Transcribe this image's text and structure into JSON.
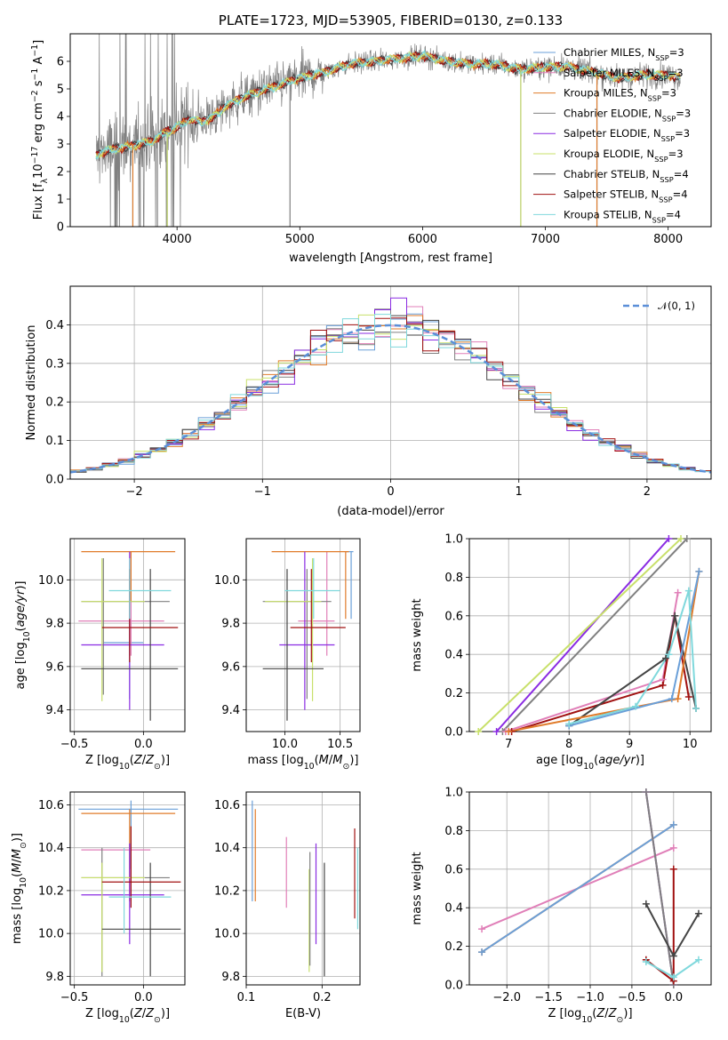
{
  "colors": {
    "chabrier_miles": "#6a9fd8",
    "salpeter_miles": "#e07fb8",
    "kroupa_miles": "#e07b2a",
    "chabrier_elodie": "#808080",
    "salpeter_elodie": "#8a2be2",
    "kroupa_elodie": "#c8e06a",
    "chabrier_stelib": "#444444",
    "salpeter_stelib": "#a01010",
    "kroupa_stelib": "#7fd8dc"
  },
  "chart_data": [
    {
      "type": "line",
      "id": "spectrum",
      "title": "PLATE=1723, MJD=53905, FIBERID=0130, z=0.133",
      "xlabel": "wavelength [Angstrom, rest frame]",
      "ylabel_parts": {
        "a": "Flux [f",
        "b": "λ",
        "c": "10",
        "d": "−17",
        "e": " erg cm",
        "f": "−2",
        "g": " s",
        "h": "−1",
        "i": " A",
        "j": "−1",
        "k": "]"
      },
      "xlim": [
        3130,
        8350
      ],
      "ylim": [
        0,
        7
      ],
      "xticks": [
        4000,
        5000,
        6000,
        7000,
        8000
      ],
      "yticks": [
        0,
        1,
        2,
        3,
        4,
        5,
        6
      ],
      "legend": [
        {
          "base": "Chabrier MILES, N",
          "sub": "SSP",
          "tail": "=3",
          "color_key": "chabrier_miles"
        },
        {
          "base": "Salpeter MILES, N",
          "sub": "SSP",
          "tail": "=3",
          "color_key": "salpeter_miles"
        },
        {
          "base": "Kroupa MILES, N",
          "sub": "SSP",
          "tail": "=3",
          "color_key": "kroupa_miles"
        },
        {
          "base": "Chabrier ELODIE, N",
          "sub": "SSP",
          "tail": "=3",
          "color_key": "chabrier_elodie"
        },
        {
          "base": "Salpeter ELODIE, N",
          "sub": "SSP",
          "tail": "=3",
          "color_key": "salpeter_elodie"
        },
        {
          "base": "Kroupa ELODIE, N",
          "sub": "SSP",
          "tail": "=3",
          "color_key": "kroupa_elodie"
        },
        {
          "base": "Chabrier STELIB, N",
          "sub": "SSP",
          "tail": "=4",
          "color_key": "chabrier_stelib"
        },
        {
          "base": "Salpeter STELIB, N",
          "sub": "SSP",
          "tail": "=4",
          "color_key": "salpeter_stelib"
        },
        {
          "base": "Kroupa STELIB, N",
          "sub": "SSP",
          "tail": "=4",
          "color_key": "kroupa_stelib"
        }
      ],
      "continuum": [
        [
          3340,
          2.6
        ],
        [
          3450,
          2.8
        ],
        [
          3600,
          2.9
        ],
        [
          3700,
          3.0
        ],
        [
          3800,
          3.1
        ],
        [
          3900,
          3.4
        ],
        [
          4000,
          3.6
        ],
        [
          4100,
          3.9
        ],
        [
          4200,
          3.8
        ],
        [
          4300,
          4.0
        ],
        [
          4400,
          4.4
        ],
        [
          4600,
          4.8
        ],
        [
          4800,
          5.1
        ],
        [
          5000,
          5.4
        ],
        [
          5200,
          5.6
        ],
        [
          5400,
          5.9
        ],
        [
          5600,
          6.0
        ],
        [
          5800,
          6.1
        ],
        [
          6000,
          6.2
        ],
        [
          6200,
          6.0
        ],
        [
          6400,
          5.9
        ],
        [
          6600,
          5.9
        ],
        [
          6800,
          5.7
        ],
        [
          7000,
          5.8
        ],
        [
          7200,
          5.8
        ],
        [
          7400,
          5.6
        ],
        [
          7600,
          5.4
        ],
        [
          7800,
          5.5
        ],
        [
          8000,
          5.5
        ],
        [
          8100,
          5.4
        ]
      ],
      "dips": [
        [
          3500,
          0
        ],
        [
          3640,
          0
        ],
        [
          3700,
          0
        ],
        [
          3840,
          0
        ],
        [
          3920,
          0
        ],
        [
          4920,
          0
        ],
        [
          6800,
          0
        ],
        [
          7420,
          0
        ]
      ]
    },
    {
      "type": "line",
      "id": "residual_histogram",
      "xlabel": "(data-model)/error",
      "ylabel": "Normed distribution",
      "xlim": [
        -2.5,
        2.5
      ],
      "ylim": [
        0,
        0.5
      ],
      "xticks": [
        -2,
        -1,
        0,
        1,
        2
      ],
      "yticks": [
        0.0,
        0.1,
        0.2,
        0.3,
        0.4
      ],
      "legend": [
        {
          "label": "𝒩(0, 1)",
          "style": "dashed",
          "color": "#5b8fd8"
        }
      ]
    },
    {
      "type": "scatter",
      "id": "age_vs_Z",
      "xlabel": "Z [log10(Z/Z⊙)]",
      "ylabel": "age  [log10(age/yr)]",
      "xlim": [
        -0.53,
        0.3
      ],
      "ylim": [
        9.3,
        10.19
      ],
      "xticks": [
        -0.5,
        0.0
      ],
      "yticks": [
        9.4,
        9.6,
        9.8,
        10.0
      ],
      "points": [
        {
          "c": "chabrier_miles",
          "x": -0.1,
          "y": 9.71,
          "xe": [
            -0.29,
            0.0
          ],
          "ye": [
            9.45,
            10.02
          ]
        },
        {
          "c": "salpeter_miles",
          "x": -0.09,
          "y": 9.81,
          "xe": [
            -0.47,
            0.15
          ],
          "ye": [
            9.65,
            10.13
          ]
        },
        {
          "c": "kroupa_miles",
          "x": -0.09,
          "y": 10.13,
          "xe": [
            -0.45,
            0.23
          ],
          "ye": [
            9.9,
            10.13
          ]
        },
        {
          "c": "chabrier_elodie",
          "x": -0.29,
          "y": 9.9,
          "xe": [
            -0.45,
            0.19
          ],
          "ye": [
            9.47,
            10.1
          ]
        },
        {
          "c": "salpeter_elodie",
          "x": -0.1,
          "y": 9.7,
          "xe": [
            -0.45,
            0.15
          ],
          "ye": [
            9.4,
            10.13
          ]
        },
        {
          "c": "kroupa_elodie",
          "x": -0.3,
          "y": 9.9,
          "xe": [
            -0.45,
            0.01
          ],
          "ye": [
            9.44,
            10.1
          ]
        },
        {
          "c": "chabrier_stelib",
          "x": 0.05,
          "y": 9.59,
          "xe": [
            -0.45,
            0.25
          ],
          "ye": [
            9.35,
            10.05
          ]
        },
        {
          "c": "salpeter_stelib",
          "x": -0.1,
          "y": 9.78,
          "xe": [
            -0.3,
            0.25
          ],
          "ye": [
            9.62,
            10.05
          ]
        },
        {
          "c": "kroupa_stelib",
          "x": -0.1,
          "y": 9.95,
          "xe": [
            -0.25,
            0.2
          ],
          "ye": [
            9.82,
            10.1
          ]
        }
      ]
    },
    {
      "type": "scatter",
      "id": "age_vs_mass",
      "xlabel": "mass [log10(M/M⊙)]",
      "ylabel": "",
      "xlim": [
        9.65,
        10.68
      ],
      "ylim": [
        9.3,
        10.19
      ],
      "xticks": [
        10.0,
        10.5
      ],
      "yticks": [
        9.4,
        9.6,
        9.8,
        10.0
      ],
      "points": [
        {
          "c": "chabrier_miles",
          "x": 10.6,
          "y": 10.13,
          "xe": [
            10.55,
            10.62
          ],
          "ye": [
            9.82,
            10.13
          ]
        },
        {
          "c": "salpeter_miles",
          "x": 10.38,
          "y": 9.81,
          "xe": [
            10.12,
            10.45
          ],
          "ye": [
            9.65,
            10.13
          ]
        },
        {
          "c": "kroupa_miles",
          "x": 10.55,
          "y": 10.13,
          "xe": [
            9.88,
            10.58
          ],
          "ye": [
            9.82,
            10.13
          ]
        },
        {
          "c": "chabrier_elodie",
          "x": 10.2,
          "y": 9.9,
          "xe": [
            9.8,
            10.42
          ],
          "ye": [
            9.45,
            10.05
          ]
        },
        {
          "c": "salpeter_elodie",
          "x": 10.18,
          "y": 9.7,
          "xe": [
            9.95,
            10.45
          ],
          "ye": [
            9.4,
            10.13
          ]
        },
        {
          "c": "kroupa_elodie",
          "x": 10.25,
          "y": 9.9,
          "xe": [
            9.82,
            10.33
          ],
          "ye": [
            9.44,
            10.1
          ]
        },
        {
          "c": "chabrier_stelib",
          "x": 10.02,
          "y": 9.59,
          "xe": [
            9.8,
            10.35
          ],
          "ye": [
            9.35,
            10.05
          ]
        },
        {
          "c": "salpeter_stelib",
          "x": 10.24,
          "y": 9.78,
          "xe": [
            10.05,
            10.55
          ],
          "ye": [
            9.62,
            10.05
          ]
        },
        {
          "c": "kroupa_stelib",
          "x": 10.26,
          "y": 9.95,
          "xe": [
            10.0,
            10.5
          ],
          "ye": [
            9.82,
            10.1
          ]
        }
      ]
    },
    {
      "type": "line",
      "id": "mass_weight_vs_age",
      "xlabel": "age  [log10(age/yr)]",
      "ylabel": "mass weight",
      "xlim": [
        6.35,
        10.35
      ],
      "ylim": [
        0,
        1.0
      ],
      "xticks": [
        7,
        8,
        9,
        10
      ],
      "yticks": [
        0.0,
        0.2,
        0.4,
        0.6,
        0.8,
        1.0
      ],
      "series": [
        {
          "c": "salpeter_elodie",
          "x": [
            6.8,
            9.65
          ],
          "y": [
            0.0,
            1.0
          ]
        },
        {
          "c": "kroupa_elodie",
          "x": [
            6.5,
            9.85
          ],
          "y": [
            0.0,
            1.0
          ]
        },
        {
          "c": "chabrier_elodie",
          "x": [
            6.9,
            9.95
          ],
          "y": [
            0.0,
            1.0
          ]
        },
        {
          "c": "salpeter_miles",
          "x": [
            6.95,
            9.55,
            9.8
          ],
          "y": [
            0.0,
            0.27,
            0.72
          ]
        },
        {
          "c": "salpeter_stelib",
          "x": [
            7.05,
            9.55,
            9.75,
            9.98
          ],
          "y": [
            0.0,
            0.24,
            0.6,
            0.18
          ]
        },
        {
          "c": "chabrier_stelib",
          "x": [
            8.0,
            9.6,
            9.75,
            10.1
          ],
          "y": [
            0.03,
            0.38,
            0.6,
            0.12
          ]
        },
        {
          "c": "kroupa_miles",
          "x": [
            7.0,
            9.8,
            10.15
          ],
          "y": [
            0.0,
            0.17,
            0.83
          ]
        },
        {
          "c": "chabrier_miles",
          "x": [
            8.0,
            9.7,
            10.15
          ],
          "y": [
            0.03,
            0.17,
            0.83
          ]
        },
        {
          "c": "kroupa_stelib",
          "x": [
            8.0,
            9.1,
            9.65,
            9.98,
            10.1
          ],
          "y": [
            0.04,
            0.13,
            0.4,
            0.73,
            0.12
          ]
        }
      ]
    },
    {
      "type": "scatter",
      "id": "mass_vs_Z",
      "xlabel": "Z [log10(Z/Z⊙)]",
      "ylabel": "mass [log10(M/M⊙)]",
      "xlim": [
        -0.53,
        0.3
      ],
      "ylim": [
        9.76,
        10.66
      ],
      "xticks": [
        -0.5,
        0.0
      ],
      "yticks": [
        9.8,
        10.0,
        10.2,
        10.4,
        10.6
      ],
      "points": [
        {
          "c": "chabrier_miles",
          "x": -0.09,
          "y": 10.58,
          "xe": [
            -0.47,
            0.25
          ],
          "ye": [
            10.3,
            10.62
          ]
        },
        {
          "c": "salpeter_miles",
          "x": -0.1,
          "y": 10.39,
          "xe": [
            -0.45,
            0.05
          ],
          "ye": [
            10.15,
            10.42
          ]
        },
        {
          "c": "kroupa_miles",
          "x": -0.1,
          "y": 10.56,
          "xe": [
            -0.45,
            0.23
          ],
          "ye": [
            10.15,
            10.58
          ]
        },
        {
          "c": "chabrier_elodie",
          "x": -0.3,
          "y": 10.26,
          "xe": [
            -0.45,
            0.19
          ],
          "ye": [
            9.8,
            10.4
          ]
        },
        {
          "c": "salpeter_elodie",
          "x": -0.1,
          "y": 10.18,
          "xe": [
            -0.45,
            0.15
          ],
          "ye": [
            9.95,
            10.42
          ]
        },
        {
          "c": "kroupa_elodie",
          "x": -0.3,
          "y": 10.26,
          "xe": [
            -0.45,
            0.01
          ],
          "ye": [
            9.82,
            10.33
          ]
        },
        {
          "c": "chabrier_stelib",
          "x": 0.05,
          "y": 10.02,
          "xe": [
            -0.3,
            0.27
          ],
          "ye": [
            9.8,
            10.33
          ]
        },
        {
          "c": "salpeter_stelib",
          "x": -0.09,
          "y": 10.24,
          "xe": [
            -0.3,
            0.27
          ],
          "ye": [
            10.12,
            10.5
          ]
        },
        {
          "c": "kroupa_stelib",
          "x": -0.14,
          "y": 10.17,
          "xe": [
            -0.25,
            0.2
          ],
          "ye": [
            10.0,
            10.4
          ]
        }
      ]
    },
    {
      "type": "scatter",
      "id": "mass_vs_EBV",
      "xlabel": "E(B-V)",
      "ylabel": "",
      "xlim": [
        0.1,
        0.25
      ],
      "ylim": [
        9.76,
        10.66
      ],
      "xticks": [
        0.1,
        0.2
      ],
      "yticks": [
        9.8,
        10.0,
        10.2,
        10.4,
        10.6
      ],
      "points": [
        {
          "c": "chabrier_miles",
          "x": 0.108,
          "ye": [
            10.15,
            10.62
          ]
        },
        {
          "c": "kroupa_miles",
          "x": 0.112,
          "ye": [
            10.15,
            10.58
          ]
        },
        {
          "c": "salpeter_miles",
          "x": 0.153,
          "ye": [
            10.12,
            10.45
          ]
        },
        {
          "c": "kroupa_elodie",
          "x": 0.183,
          "ye": [
            9.82,
            10.3
          ]
        },
        {
          "c": "chabrier_elodie",
          "x": 0.184,
          "ye": [
            9.85,
            10.38
          ]
        },
        {
          "c": "salpeter_elodie",
          "x": 0.192,
          "ye": [
            9.95,
            10.42
          ]
        },
        {
          "c": "chabrier_stelib",
          "x": 0.203,
          "ye": [
            9.8,
            10.33
          ]
        },
        {
          "c": "salpeter_stelib",
          "x": 0.243,
          "ye": [
            10.07,
            10.49
          ]
        },
        {
          "c": "kroupa_stelib",
          "x": 0.247,
          "ye": [
            10.02,
            10.4
          ]
        }
      ]
    },
    {
      "type": "line",
      "id": "mass_weight_vs_Z",
      "xlabel": "Z [log10(Z/Z⊙)]",
      "ylabel": "mass weight",
      "xlim": [
        -2.45,
        0.45
      ],
      "ylim": [
        0,
        1.0
      ],
      "xticks": [
        -2.0,
        -1.5,
        -1.0,
        -0.5,
        0.0
      ],
      "yticks": [
        0.0,
        0.2,
        0.4,
        0.6,
        0.8,
        1.0
      ],
      "series": [
        {
          "c": "salpeter_miles",
          "x": [
            -2.3,
            0.0
          ],
          "y": [
            0.29,
            0.71
          ]
        },
        {
          "c": "kroupa_miles",
          "x": [
            -2.3,
            0.0
          ],
          "y": [
            0.17,
            0.83
          ]
        },
        {
          "c": "chabrier_miles",
          "x": [
            -2.3,
            0.0
          ],
          "y": [
            0.17,
            0.83
          ]
        },
        {
          "c": "kroupa_elodie",
          "x": [
            -0.33,
            0.0
          ],
          "y": [
            1.0,
            0.0
          ]
        },
        {
          "c": "salpeter_elodie",
          "x": [
            -0.33,
            0.0
          ],
          "y": [
            1.0,
            0.0
          ]
        },
        {
          "c": "chabrier_elodie",
          "x": [
            -0.33,
            0.0
          ],
          "y": [
            1.0,
            0.0
          ]
        },
        {
          "c": "salpeter_stelib",
          "x": [
            -0.33,
            0.0,
            0.0
          ],
          "y": [
            0.13,
            0.02,
            0.6
          ]
        },
        {
          "c": "chabrier_stelib",
          "x": [
            -0.33,
            0.0,
            0.3
          ],
          "y": [
            0.42,
            0.15,
            0.37
          ]
        },
        {
          "c": "kroupa_stelib",
          "x": [
            -0.33,
            0.0,
            0.3
          ],
          "y": [
            0.12,
            0.04,
            0.13
          ]
        }
      ]
    }
  ]
}
